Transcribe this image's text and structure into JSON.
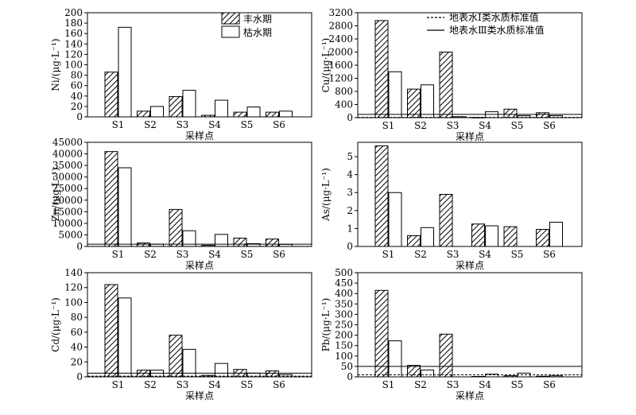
{
  "legend": {
    "wet_season": "丰水期",
    "dry_season": "枯水期",
    "class1_standard": "地表水Ⅰ类水质标准值",
    "class3_standard": "地表水Ⅲ类水质标准值"
  },
  "chart_data": [
    {
      "type": "bar",
      "title": "",
      "xlabel": "采样点",
      "ylabel": "Ni/(μg·L⁻¹)",
      "categories": [
        "S1",
        "S2",
        "S3",
        "S4",
        "S5",
        "S6"
      ],
      "yticks": [
        0,
        20,
        40,
        60,
        80,
        100,
        120,
        140,
        160,
        180,
        200
      ],
      "ylim": [
        0,
        200
      ],
      "series": [
        {
          "name": "丰水期",
          "values": [
            86,
            11,
            39,
            3,
            9,
            9
          ]
        },
        {
          "name": "枯水期",
          "values": [
            172,
            20,
            51,
            32,
            19,
            11
          ]
        }
      ],
      "standards": [],
      "grid": false
    },
    {
      "type": "bar",
      "title": "",
      "xlabel": "采样点",
      "ylabel": "Cu/(μg·L⁻¹)",
      "categories": [
        "S1",
        "S2",
        "S3",
        "S4",
        "S5",
        "S6"
      ],
      "yticks": [
        0,
        400,
        800,
        1200,
        1600,
        2000,
        2400,
        2800,
        3200
      ],
      "ylim": [
        0,
        3200
      ],
      "series": [
        {
          "name": "丰水期",
          "values": [
            2960,
            870,
            2000,
            5,
            260,
            150
          ]
        },
        {
          "name": "枯水期",
          "values": [
            1400,
            1000,
            30,
            180,
            60,
            60
          ]
        }
      ],
      "standards": [
        {
          "name": "地表水Ⅰ类水质标准值",
          "value": 10,
          "style": "dashed"
        },
        {
          "name": "地表水Ⅲ类水质标准值",
          "value": 100,
          "style": "solid"
        }
      ],
      "grid": false
    },
    {
      "type": "bar",
      "title": "",
      "xlabel": "采样点",
      "ylabel": "Zn/(μg·L⁻¹)",
      "categories": [
        "S1",
        "S2",
        "S3",
        "S4",
        "S5",
        "S6"
      ],
      "yticks": [
        0,
        5000,
        10000,
        15000,
        20000,
        25000,
        30000,
        35000,
        40000,
        45000
      ],
      "ylim": [
        0,
        45000
      ],
      "series": [
        {
          "name": "丰水期",
          "values": [
            41000,
            1500,
            16000,
            500,
            3600,
            3200
          ]
        },
        {
          "name": "枯水期",
          "values": [
            34000,
            1000,
            6800,
            5200,
            1200,
            900
          ]
        }
      ],
      "standards": [
        {
          "name": "地表水Ⅰ类水质标准值",
          "value": 50,
          "style": "dashed"
        },
        {
          "name": "地表水Ⅲ类水质标准值",
          "value": 1000,
          "style": "solid"
        }
      ],
      "grid": false
    },
    {
      "type": "bar",
      "title": "",
      "xlabel": "采样点",
      "ylabel": "As/(μg·L⁻¹)",
      "categories": [
        "S1",
        "S2",
        "S3",
        "S4",
        "S5",
        "S6"
      ],
      "yticks": [
        0,
        1,
        2,
        3,
        4,
        5
      ],
      "ylim": [
        0,
        5.8
      ],
      "series": [
        {
          "name": "丰水期",
          "values": [
            5.6,
            0.6,
            2.9,
            1.25,
            1.1,
            0.95
          ]
        },
        {
          "name": "枯水期",
          "values": [
            3.0,
            1.05,
            0,
            1.15,
            0,
            1.35
          ]
        }
      ],
      "standards": [],
      "grid": false
    },
    {
      "type": "bar",
      "title": "",
      "xlabel": "采样点",
      "ylabel": "Cd/(μg·L⁻¹)",
      "categories": [
        "S1",
        "S2",
        "S3",
        "S4",
        "S5",
        "S6"
      ],
      "yticks": [
        0,
        20,
        40,
        60,
        80,
        100,
        120,
        140
      ],
      "ylim": [
        0,
        140
      ],
      "series": [
        {
          "name": "丰水期",
          "values": [
            124,
            9,
            56,
            2,
            10,
            8
          ]
        },
        {
          "name": "枯水期",
          "values": [
            106,
            9,
            37,
            18,
            5,
            3
          ]
        }
      ],
      "standards": [
        {
          "name": "地表水Ⅰ类水质标准值",
          "value": 1,
          "style": "dashed"
        },
        {
          "name": "地表水Ⅲ类水质标准值",
          "value": 5,
          "style": "solid"
        }
      ],
      "grid": false
    },
    {
      "type": "bar",
      "title": "",
      "xlabel": "采样点",
      "ylabel": "Pb/(μg·L⁻¹)",
      "categories": [
        "S1",
        "S2",
        "S3",
        "S4",
        "S5",
        "S6"
      ],
      "yticks": [
        0,
        50,
        100,
        150,
        200,
        250,
        300,
        350,
        400,
        450,
        500
      ],
      "ylim": [
        0,
        500
      ],
      "series": [
        {
          "name": "丰水期",
          "values": [
            415,
            55,
            205,
            2,
            5,
            3
          ]
        },
        {
          "name": "枯水期",
          "values": [
            173,
            33,
            0,
            13,
            18,
            5
          ]
        }
      ],
      "standards": [
        {
          "name": "地表水Ⅰ类水质标准值",
          "value": 10,
          "style": "dashed"
        },
        {
          "name": "地表水Ⅲ类水质标准值",
          "value": 50,
          "style": "solid"
        }
      ],
      "grid": false
    }
  ]
}
